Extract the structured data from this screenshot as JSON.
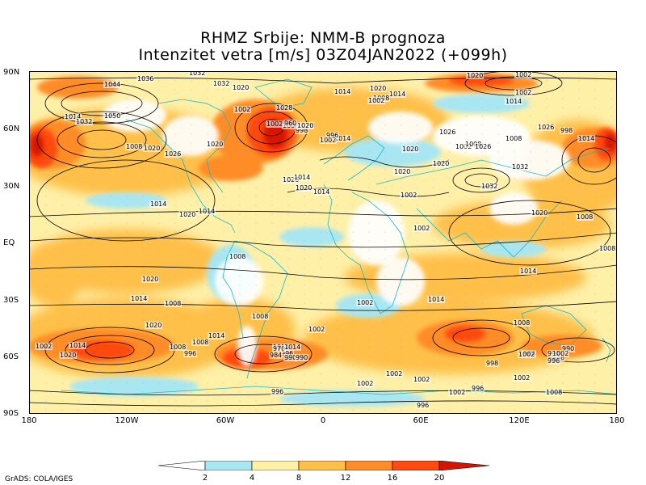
{
  "header": {
    "line1": "RHMZ Srbije: NMM-B prognoza",
    "line2": "Intenzitet vetra [m/s] 03Z04JAN2022 (+099h)"
  },
  "axes": {
    "lat_labels": [
      "90N",
      "60N",
      "30N",
      "EQ",
      "30S",
      "60S",
      "90S"
    ],
    "lon_labels": [
      "180",
      "120W",
      "60W",
      "0",
      "60E",
      "120E",
      "180"
    ]
  },
  "colorbar": {
    "levels": [
      "2",
      "4",
      "8",
      "12",
      "16",
      "20"
    ],
    "colors": [
      "#ffffff",
      "#a8e6f2",
      "#fff0a8",
      "#ffc04a",
      "#ff8c28",
      "#ff4a10",
      "#d61400"
    ]
  },
  "credit": "GrADS: COLA/IGES",
  "isobar_labels": [
    "1044",
    "1036",
    "1032",
    "1032",
    "1020",
    "1014",
    "1020",
    "1014",
    "1008",
    "1002",
    "1020",
    "1002",
    "1032",
    "1002",
    "1014",
    "1028",
    "1002",
    "1050",
    "1014",
    "1032",
    "1008",
    "1020",
    "1026",
    "1020",
    "1008",
    "1014",
    "998",
    "1002",
    "960",
    "1026",
    "1020",
    "996",
    "1002",
    "1026",
    "1020",
    "1002",
    "1008",
    "1026",
    "1008",
    "1026",
    "998",
    "1014",
    "1032",
    "1032",
    "1020",
    "1020",
    "1020",
    "1014",
    "1020",
    "1014",
    "1026",
    "1014",
    "1002",
    "1020",
    "1014",
    "1002",
    "1008",
    "1008",
    "1008",
    "1014",
    "1020",
    "1014",
    "1008",
    "1014",
    "1020",
    "1008",
    "996",
    "1002",
    "1008",
    "1014",
    "996",
    "990",
    "984",
    "990",
    "970",
    "1014",
    "1002",
    "1020",
    "1014",
    "1008",
    "1002",
    "1014",
    "1008",
    "990",
    "984",
    "998",
    "990",
    "1002",
    "998",
    "1002",
    "996",
    "996",
    "1002",
    "1002",
    "1002",
    "996",
    "1002",
    "1008",
    "1002",
    "996"
  ],
  "wind_regions": [
    {
      "name": "north-pacific-jet",
      "level": "20"
    },
    {
      "name": "north-atlantic-jet",
      "level": "20"
    },
    {
      "name": "southern-ocean-jet",
      "level": "16"
    }
  ]
}
